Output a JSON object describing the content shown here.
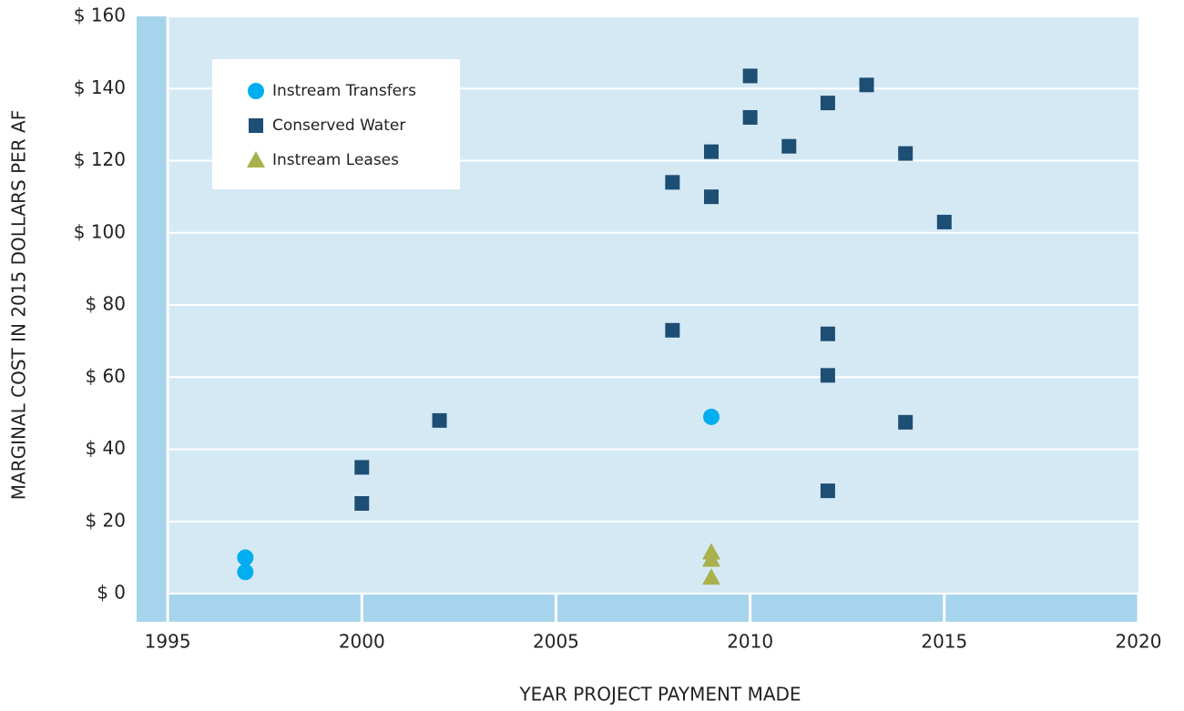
{
  "chart_data": {
    "type": "scatter",
    "xlabel": "YEAR PROJECT PAYMENT MADE",
    "ylabel": "MARGINAL COST IN 2015 DOLLARS PER AF",
    "xlim": [
      1994.2,
      2020
    ],
    "ylim": [
      -7.8,
      160
    ],
    "xticks": [
      1995,
      2000,
      2005,
      2010,
      2015,
      2020
    ],
    "yticks": [
      {
        "value": 0,
        "label": "$ 0"
      },
      {
        "value": 20,
        "label": "$ 20"
      },
      {
        "value": 40,
        "label": "$ 40"
      },
      {
        "value": 60,
        "label": "$ 60"
      },
      {
        "value": 80,
        "label": "$ 80"
      },
      {
        "value": 100,
        "label": "$ 100"
      },
      {
        "value": 120,
        "label": "$ 120"
      },
      {
        "value": 140,
        "label": "$ 140"
      },
      {
        "value": 160,
        "label": "$ 160"
      }
    ],
    "grid": true,
    "legend": "upper left",
    "series": [
      {
        "name": "Instream Transfers",
        "color": "#00aeef",
        "marker": "circle",
        "x": [
          1997,
          1997,
          2009
        ],
        "y": [
          10,
          6,
          49
        ]
      },
      {
        "name": "Conserved Water",
        "color": "#1d4e74",
        "marker": "square",
        "x": [
          2000,
          2000,
          2002,
          2008,
          2008,
          2009,
          2009,
          2010,
          2010,
          2011,
          2012,
          2012,
          2012,
          2012,
          2013,
          2014,
          2014,
          2015
        ],
        "y": [
          35,
          25,
          48,
          114,
          73,
          122.5,
          110,
          143.5,
          132,
          124,
          136,
          72,
          60.5,
          28.5,
          141,
          122,
          47.5,
          103
        ]
      },
      {
        "name": "Instream Leases",
        "color": "#a9b14e",
        "marker": "triangle",
        "x": [
          2009,
          2009,
          2009
        ],
        "y": [
          11.5,
          9.5,
          4.5
        ]
      }
    ]
  }
}
